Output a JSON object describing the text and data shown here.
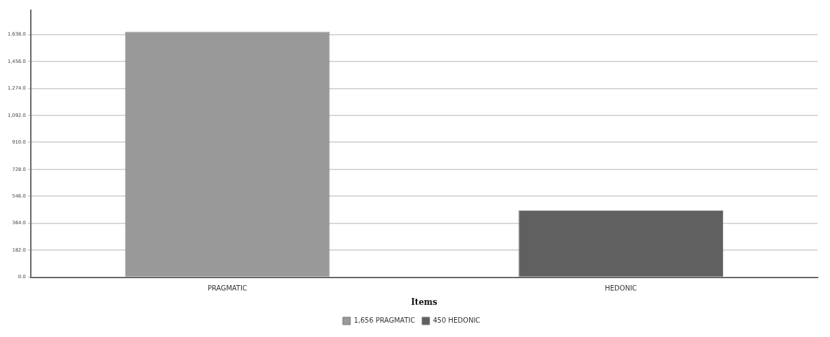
{
  "chart_data": {
    "type": "bar",
    "xlabel": "Items",
    "categories": [
      "PRAGMATIC",
      "HEDONIC"
    ],
    "series": [
      {
        "name": "1,656 PRAGMATIC",
        "color": "#999999",
        "values": [
          1656,
          null
        ]
      },
      {
        "name": "450 HEDONIC",
        "color": "#606060",
        "values": [
          null,
          450
        ]
      }
    ],
    "ylim": [
      0,
      1800
    ],
    "yticks": [
      {
        "value": 0,
        "label": "0.0"
      },
      {
        "value": 182,
        "label": "182.0"
      },
      {
        "value": 364,
        "label": "364.0"
      },
      {
        "value": 546,
        "label": "546.0"
      },
      {
        "value": 728,
        "label": "728.0"
      },
      {
        "value": 910,
        "label": "910.0"
      },
      {
        "value": 1092,
        "label": "1,092.0"
      },
      {
        "value": 1274,
        "label": "1,274.0"
      },
      {
        "value": 1456,
        "label": "1,456.0"
      },
      {
        "value": 1638,
        "label": "1,638.0"
      }
    ],
    "grid": "y",
    "legend": "bottom"
  }
}
